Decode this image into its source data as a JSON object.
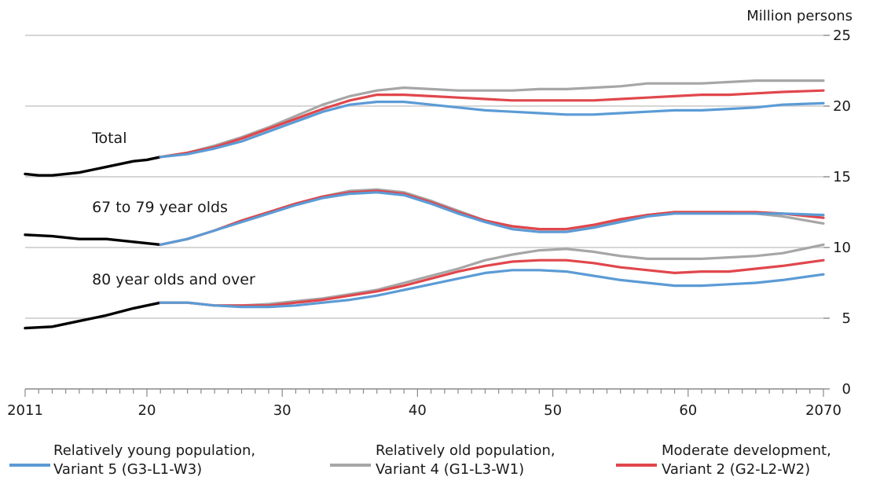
{
  "chart_data": {
    "type": "line",
    "unit_label": "Million persons",
    "ylim": [
      0,
      25
    ],
    "y_ticks": [
      0,
      5,
      10,
      15,
      20,
      25
    ],
    "xlim": [
      2011,
      2070
    ],
    "x_tick_labels": [
      {
        "year": 2011,
        "label": "2011"
      },
      {
        "year": 2020,
        "label": "20"
      },
      {
        "year": 2030,
        "label": "30"
      },
      {
        "year": 2040,
        "label": "40"
      },
      {
        "year": 2050,
        "label": "50"
      },
      {
        "year": 2060,
        "label": "60"
      },
      {
        "year": 2070,
        "label": "2070"
      }
    ],
    "grid": "horizontal",
    "legend_position": "bottom",
    "annotations": [
      {
        "text": "Total",
        "year": 2016,
        "value": 17.4
      },
      {
        "text": "67 to 79 year olds",
        "year": 2016,
        "value": 12.5
      },
      {
        "text": "80 year olds and over",
        "year": 2016,
        "value": 7.4
      }
    ],
    "colors": {
      "observed": "#000000",
      "young": "#5b9bd5",
      "old": "#a6a6a6",
      "moderate": "#e0474c"
    },
    "legend": [
      {
        "key": "young",
        "line1": "Relatively young population,",
        "line2": "Variant 5 (G3-L1-W3)"
      },
      {
        "key": "old",
        "line1": "Relatively old population,",
        "line2": "Variant 4 (G1-L3-W1)"
      },
      {
        "key": "moderate",
        "line1": "Moderate development,",
        "line2": "Variant 2 (G2-L2-W2)"
      }
    ],
    "series": [
      {
        "group": "Total",
        "key": "observed",
        "x": [
          2011,
          2012,
          2013,
          2014,
          2015,
          2016,
          2017,
          2018,
          2019,
          2020,
          2021
        ],
        "y": [
          15.2,
          15.1,
          15.1,
          15.2,
          15.3,
          15.5,
          15.7,
          15.9,
          16.1,
          16.2,
          16.4
        ]
      },
      {
        "group": "Total",
        "key": "old",
        "x": [
          2021,
          2023,
          2025,
          2027,
          2029,
          2031,
          2033,
          2035,
          2037,
          2039,
          2041,
          2043,
          2045,
          2047,
          2049,
          2051,
          2053,
          2055,
          2057,
          2059,
          2061,
          2063,
          2065,
          2067,
          2070
        ],
        "y": [
          16.4,
          16.7,
          17.2,
          17.8,
          18.5,
          19.3,
          20.1,
          20.7,
          21.1,
          21.3,
          21.2,
          21.1,
          21.1,
          21.1,
          21.2,
          21.2,
          21.3,
          21.4,
          21.6,
          21.6,
          21.6,
          21.7,
          21.8,
          21.8,
          21.8
        ]
      },
      {
        "group": "Total",
        "key": "moderate",
        "x": [
          2021,
          2023,
          2025,
          2027,
          2029,
          2031,
          2033,
          2035,
          2037,
          2039,
          2041,
          2043,
          2045,
          2047,
          2049,
          2051,
          2053,
          2055,
          2057,
          2059,
          2061,
          2063,
          2065,
          2067,
          2070
        ],
        "y": [
          16.4,
          16.7,
          17.1,
          17.7,
          18.4,
          19.1,
          19.8,
          20.4,
          20.8,
          20.8,
          20.7,
          20.6,
          20.5,
          20.4,
          20.4,
          20.4,
          20.4,
          20.5,
          20.6,
          20.7,
          20.8,
          20.8,
          20.9,
          21.0,
          21.1
        ]
      },
      {
        "group": "Total",
        "key": "young",
        "x": [
          2021,
          2023,
          2025,
          2027,
          2029,
          2031,
          2033,
          2035,
          2037,
          2039,
          2041,
          2043,
          2045,
          2047,
          2049,
          2051,
          2053,
          2055,
          2057,
          2059,
          2061,
          2063,
          2065,
          2067,
          2070
        ],
        "y": [
          16.4,
          16.6,
          17.0,
          17.5,
          18.2,
          18.9,
          19.6,
          20.1,
          20.3,
          20.3,
          20.1,
          19.9,
          19.7,
          19.6,
          19.5,
          19.4,
          19.4,
          19.5,
          19.6,
          19.7,
          19.7,
          19.8,
          19.9,
          20.1,
          20.2
        ]
      },
      {
        "group": "67 to 79 year olds",
        "key": "observed",
        "x": [
          2011,
          2013,
          2015,
          2017,
          2019,
          2021
        ],
        "y": [
          10.9,
          10.8,
          10.6,
          10.6,
          10.4,
          10.2
        ]
      },
      {
        "group": "67 to 79 year olds",
        "key": "old",
        "x": [
          2021,
          2023,
          2025,
          2027,
          2029,
          2031,
          2033,
          2035,
          2037,
          2039,
          2041,
          2043,
          2045,
          2047,
          2049,
          2051,
          2053,
          2055,
          2057,
          2059,
          2061,
          2063,
          2065,
          2067,
          2070
        ],
        "y": [
          10.2,
          10.6,
          11.2,
          11.9,
          12.5,
          13.1,
          13.6,
          14.0,
          14.1,
          13.9,
          13.3,
          12.6,
          11.9,
          11.5,
          11.3,
          11.3,
          11.5,
          11.9,
          12.3,
          12.5,
          12.5,
          12.5,
          12.4,
          12.2,
          11.7
        ]
      },
      {
        "group": "67 to 79 year olds",
        "key": "moderate",
        "x": [
          2021,
          2023,
          2025,
          2027,
          2029,
          2031,
          2033,
          2035,
          2037,
          2039,
          2041,
          2043,
          2045,
          2047,
          2049,
          2051,
          2053,
          2055,
          2057,
          2059,
          2061,
          2063,
          2065,
          2067,
          2070
        ],
        "y": [
          10.2,
          10.6,
          11.2,
          11.9,
          12.5,
          13.1,
          13.6,
          13.9,
          14.0,
          13.8,
          13.2,
          12.5,
          11.9,
          11.5,
          11.3,
          11.3,
          11.6,
          12.0,
          12.3,
          12.5,
          12.5,
          12.5,
          12.5,
          12.4,
          12.1
        ]
      },
      {
        "group": "67 to 79 year olds",
        "key": "young",
        "x": [
          2021,
          2023,
          2025,
          2027,
          2029,
          2031,
          2033,
          2035,
          2037,
          2039,
          2041,
          2043,
          2045,
          2047,
          2049,
          2051,
          2053,
          2055,
          2057,
          2059,
          2061,
          2063,
          2065,
          2067,
          2070
        ],
        "y": [
          10.2,
          10.6,
          11.2,
          11.8,
          12.4,
          13.0,
          13.5,
          13.8,
          13.9,
          13.7,
          13.1,
          12.4,
          11.8,
          11.3,
          11.1,
          11.1,
          11.4,
          11.8,
          12.2,
          12.4,
          12.4,
          12.4,
          12.4,
          12.4,
          12.3
        ]
      },
      {
        "group": "80 year olds and over",
        "key": "observed",
        "x": [
          2011,
          2013,
          2015,
          2017,
          2019,
          2021
        ],
        "y": [
          4.3,
          4.4,
          4.8,
          5.2,
          5.7,
          6.1
        ]
      },
      {
        "group": "80 year olds and over",
        "key": "old",
        "x": [
          2021,
          2023,
          2025,
          2027,
          2029,
          2031,
          2033,
          2035,
          2037,
          2039,
          2041,
          2043,
          2045,
          2047,
          2049,
          2051,
          2053,
          2055,
          2057,
          2059,
          2061,
          2063,
          2065,
          2067,
          2070
        ],
        "y": [
          6.1,
          6.1,
          5.9,
          5.9,
          6.0,
          6.2,
          6.4,
          6.7,
          7.0,
          7.5,
          8.0,
          8.5,
          9.1,
          9.5,
          9.8,
          9.9,
          9.7,
          9.4,
          9.2,
          9.2,
          9.2,
          9.3,
          9.4,
          9.6,
          10.2
        ]
      },
      {
        "group": "80 year olds and over",
        "key": "moderate",
        "x": [
          2021,
          2023,
          2025,
          2027,
          2029,
          2031,
          2033,
          2035,
          2037,
          2039,
          2041,
          2043,
          2045,
          2047,
          2049,
          2051,
          2053,
          2055,
          2057,
          2059,
          2061,
          2063,
          2065,
          2067,
          2070
        ],
        "y": [
          6.1,
          6.1,
          5.9,
          5.9,
          5.9,
          6.1,
          6.3,
          6.6,
          6.9,
          7.3,
          7.8,
          8.3,
          8.7,
          9.0,
          9.1,
          9.1,
          8.9,
          8.6,
          8.4,
          8.2,
          8.3,
          8.3,
          8.5,
          8.7,
          9.1
        ]
      },
      {
        "group": "80 year olds and over",
        "key": "young",
        "x": [
          2021,
          2023,
          2025,
          2027,
          2029,
          2031,
          2033,
          2035,
          2037,
          2039,
          2041,
          2043,
          2045,
          2047,
          2049,
          2051,
          2053,
          2055,
          2057,
          2059,
          2061,
          2063,
          2065,
          2067,
          2070
        ],
        "y": [
          6.1,
          6.1,
          5.9,
          5.8,
          5.8,
          5.9,
          6.1,
          6.3,
          6.6,
          7.0,
          7.4,
          7.8,
          8.2,
          8.4,
          8.4,
          8.3,
          8.0,
          7.7,
          7.5,
          7.3,
          7.3,
          7.4,
          7.5,
          7.7,
          8.1
        ]
      }
    ]
  }
}
